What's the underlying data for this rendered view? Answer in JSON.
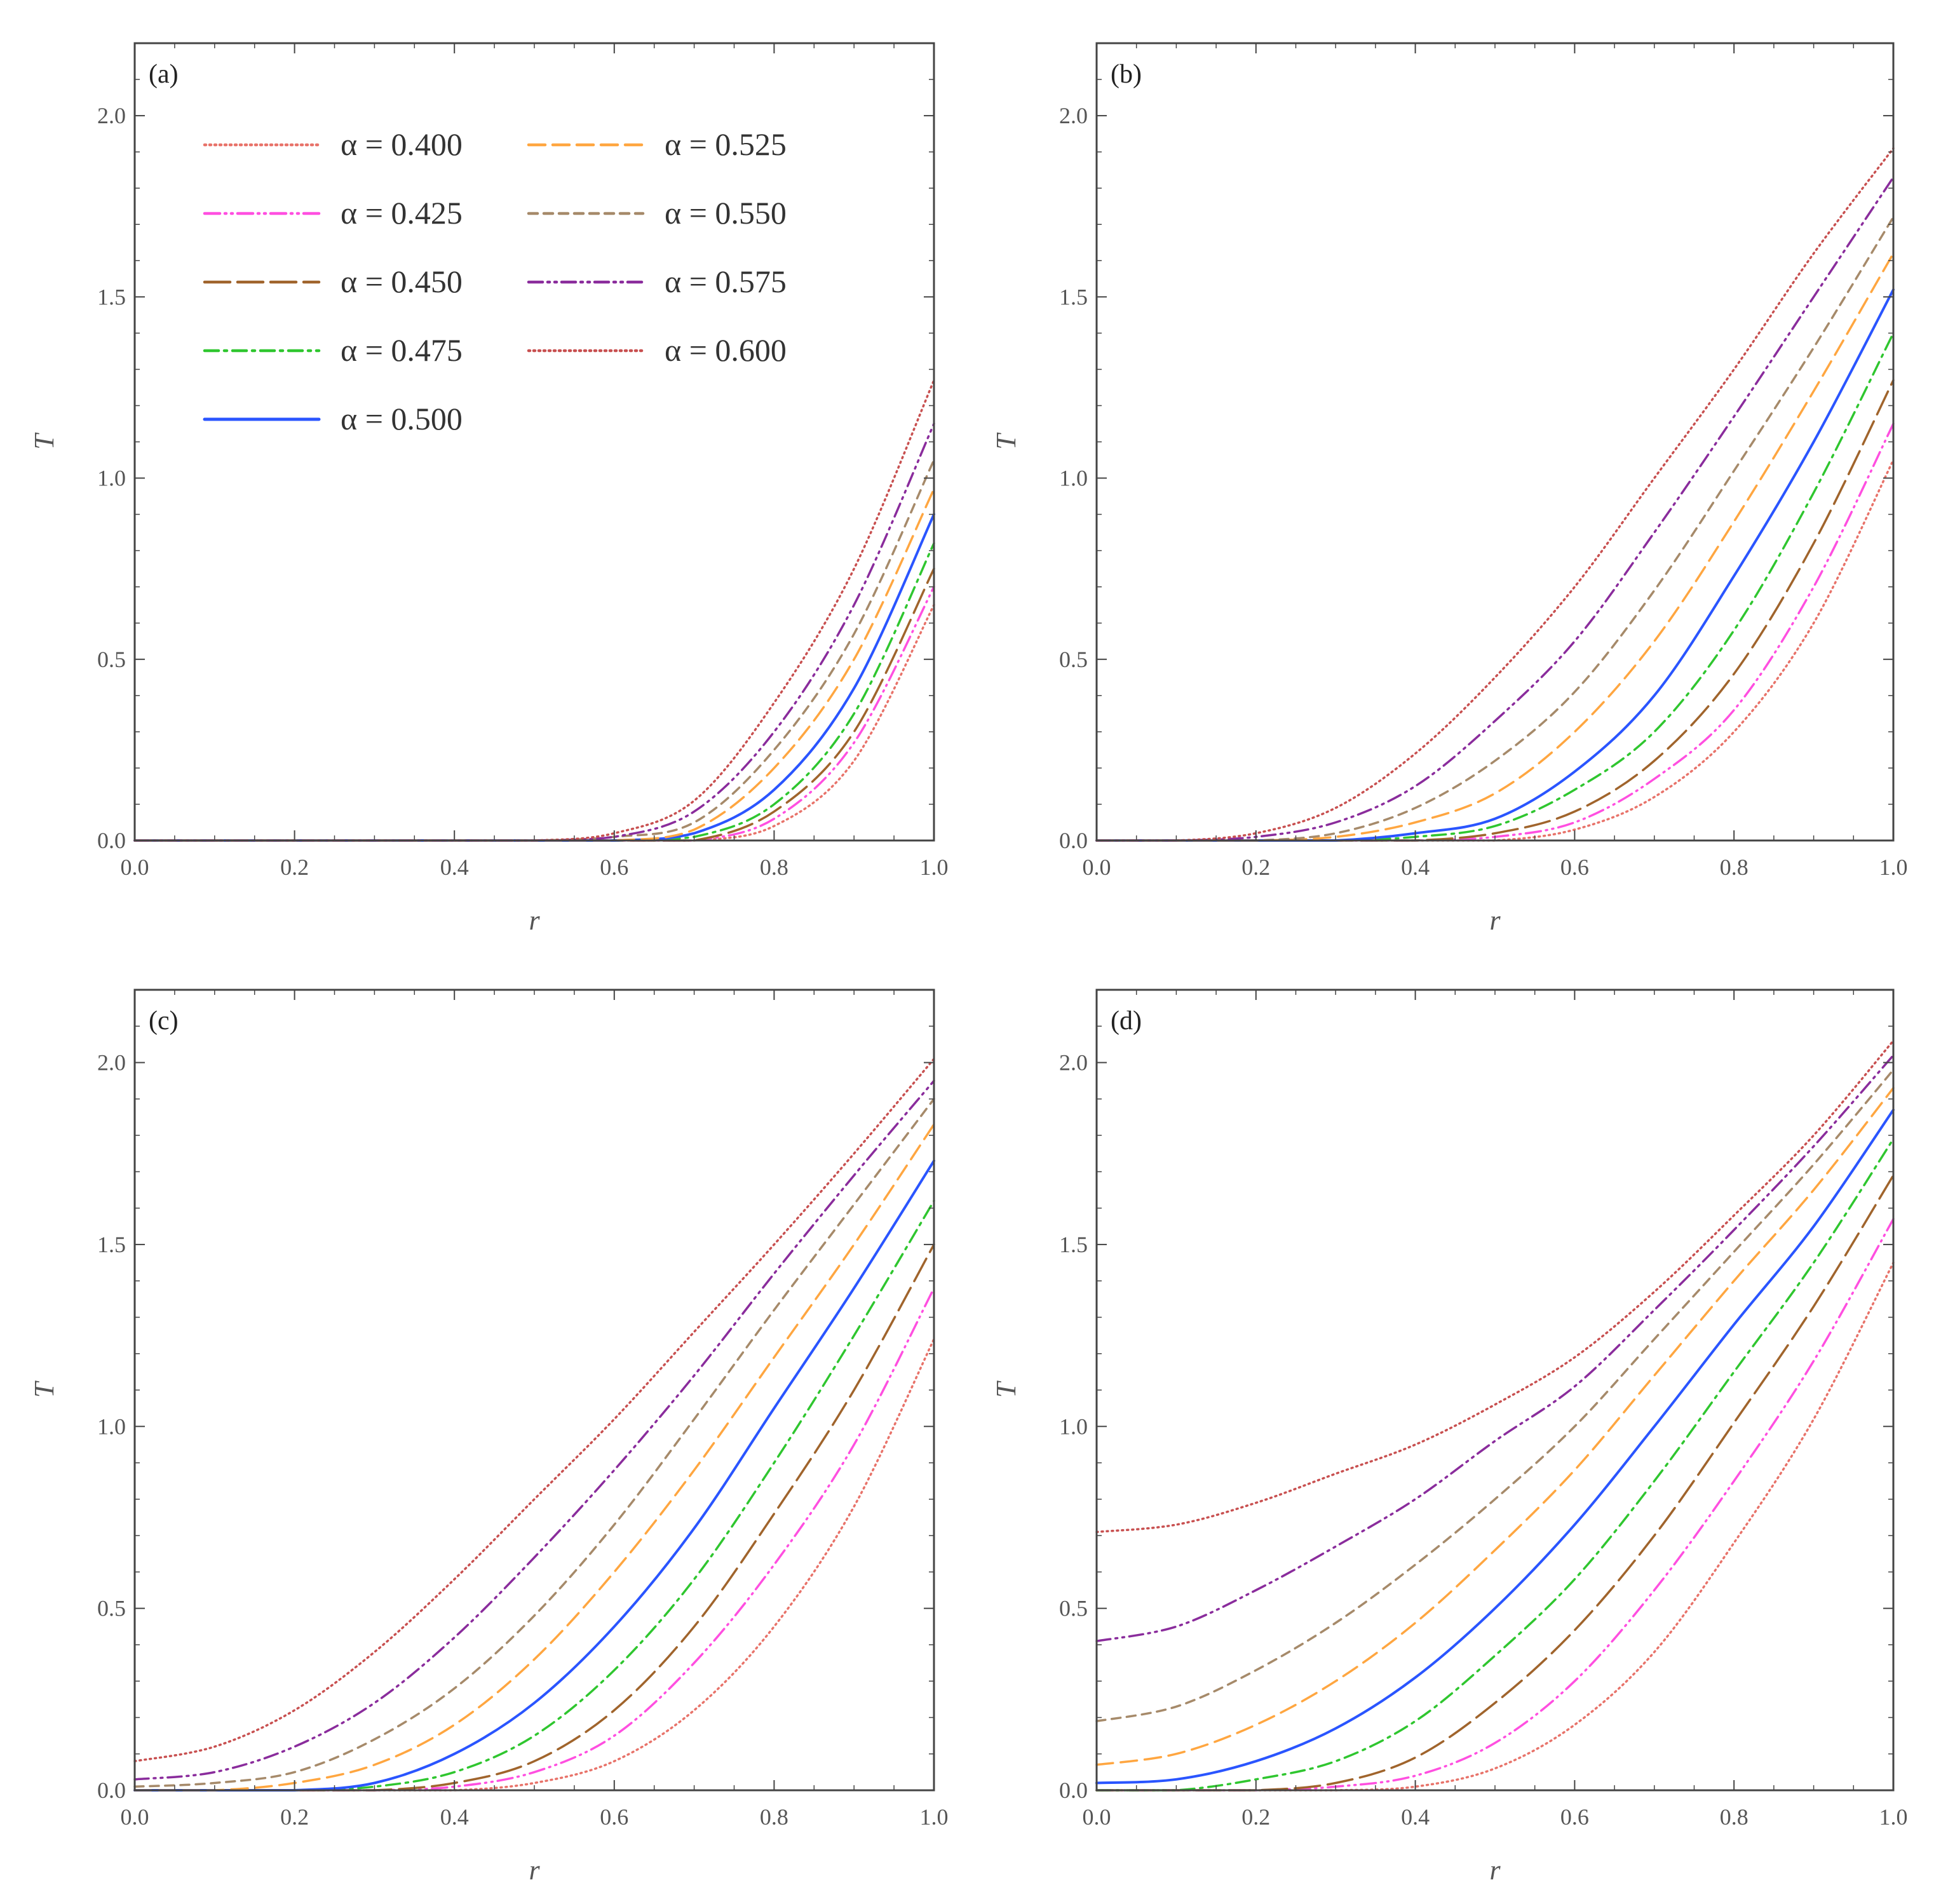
{
  "chart_data": [
    {
      "type": "line",
      "panel_label": "(a)",
      "xlabel": "r",
      "ylabel": "T",
      "xlim": [
        0.0,
        1.0
      ],
      "ylim": [
        0.0,
        2.2
      ],
      "x_ticks": [
        "0.0",
        "0.2",
        "0.4",
        "0.6",
        "0.8",
        "1.0"
      ],
      "y_ticks": [
        "0.0",
        "0.5",
        "1.0",
        "1.5",
        "2.0"
      ],
      "x": [
        0.0,
        0.1,
        0.2,
        0.3,
        0.4,
        0.5,
        0.6,
        0.7,
        0.8,
        0.9,
        1.0
      ],
      "series": [
        {
          "name": "α = 0.400",
          "values": [
            0,
            0,
            0,
            0,
            0,
            0,
            0,
            0,
            0.04,
            0.22,
            0.65
          ]
        },
        {
          "name": "α = 0.425",
          "values": [
            0,
            0,
            0,
            0,
            0,
            0,
            0,
            0,
            0.06,
            0.27,
            0.7
          ]
        },
        {
          "name": "α = 0.450",
          "values": [
            0,
            0,
            0,
            0,
            0,
            0,
            0,
            0,
            0.08,
            0.3,
            0.75
          ]
        },
        {
          "name": "α = 0.475",
          "values": [
            0,
            0,
            0,
            0,
            0,
            0,
            0,
            0.01,
            0.1,
            0.35,
            0.82
          ]
        },
        {
          "name": "α = 0.500",
          "values": [
            0,
            0,
            0,
            0,
            0,
            0,
            0,
            0.02,
            0.14,
            0.42,
            0.9
          ]
        },
        {
          "name": "α = 0.525",
          "values": [
            0,
            0,
            0,
            0,
            0,
            0,
            0,
            0.03,
            0.2,
            0.5,
            0.97
          ]
        },
        {
          "name": "α = 0.550",
          "values": [
            0,
            0,
            0,
            0,
            0,
            0,
            0.01,
            0.05,
            0.25,
            0.57,
            1.05
          ]
        },
        {
          "name": "α = 0.575",
          "values": [
            0,
            0,
            0,
            0,
            0,
            0,
            0.01,
            0.08,
            0.3,
            0.65,
            1.15
          ]
        },
        {
          "name": "α = 0.600",
          "values": [
            0,
            0,
            0,
            0,
            0,
            0,
            0.02,
            0.11,
            0.38,
            0.75,
            1.27
          ]
        }
      ],
      "legend": {
        "placement": "top-left",
        "columns": 2
      }
    },
    {
      "type": "line",
      "panel_label": "(b)",
      "xlabel": "r",
      "ylabel": "T",
      "xlim": [
        0.0,
        1.0
      ],
      "ylim": [
        0.0,
        2.2
      ],
      "x_ticks": [
        "0.0",
        "0.2",
        "0.4",
        "0.6",
        "0.8",
        "1.0"
      ],
      "y_ticks": [
        "0.0",
        "0.5",
        "1.0",
        "1.5",
        "2.0"
      ],
      "x": [
        0.0,
        0.1,
        0.2,
        0.3,
        0.4,
        0.5,
        0.6,
        0.7,
        0.8,
        0.9,
        1.0
      ],
      "series": [
        {
          "name": "α = 0.400",
          "values": [
            0,
            0,
            0,
            0,
            0,
            0,
            0.03,
            0.12,
            0.3,
            0.6,
            1.05
          ]
        },
        {
          "name": "α = 0.425",
          "values": [
            0,
            0,
            0,
            0,
            0,
            0.01,
            0.05,
            0.17,
            0.36,
            0.7,
            1.15
          ]
        },
        {
          "name": "α = 0.450",
          "values": [
            0,
            0,
            0,
            0,
            0,
            0.02,
            0.08,
            0.22,
            0.46,
            0.82,
            1.27
          ]
        },
        {
          "name": "α = 0.475",
          "values": [
            0,
            0,
            0,
            0,
            0.01,
            0.04,
            0.14,
            0.3,
            0.58,
            0.96,
            1.4
          ]
        },
        {
          "name": "α = 0.500",
          "values": [
            0,
            0,
            0,
            0,
            0.02,
            0.06,
            0.19,
            0.4,
            0.73,
            1.1,
            1.52
          ]
        },
        {
          "name": "α = 0.525",
          "values": [
            0,
            0,
            0,
            0.01,
            0.05,
            0.13,
            0.3,
            0.55,
            0.88,
            1.24,
            1.62
          ]
        },
        {
          "name": "α = 0.550",
          "values": [
            0,
            0,
            0,
            0.02,
            0.09,
            0.22,
            0.41,
            0.69,
            1.02,
            1.36,
            1.72
          ]
        },
        {
          "name": "α = 0.575",
          "values": [
            0,
            0,
            0.01,
            0.05,
            0.15,
            0.33,
            0.55,
            0.85,
            1.17,
            1.5,
            1.83
          ]
        },
        {
          "name": "α = 0.600",
          "values": [
            0,
            0,
            0.02,
            0.09,
            0.24,
            0.45,
            0.7,
            1.0,
            1.3,
            1.62,
            1.91
          ]
        }
      ]
    },
    {
      "type": "line",
      "panel_label": "(c)",
      "xlabel": "r",
      "ylabel": "T",
      "xlim": [
        0.0,
        1.0
      ],
      "ylim": [
        0.0,
        2.2
      ],
      "x_ticks": [
        "0.0",
        "0.2",
        "0.4",
        "0.6",
        "0.8",
        "1.0"
      ],
      "y_ticks": [
        "0.0",
        "0.5",
        "1.0",
        "1.5",
        "2.0"
      ],
      "x": [
        0.0,
        0.1,
        0.2,
        0.3,
        0.4,
        0.5,
        0.6,
        0.7,
        0.8,
        0.9,
        1.0
      ],
      "series": [
        {
          "name": "α = 0.400",
          "values": [
            0,
            0,
            0,
            0,
            0,
            0.02,
            0.08,
            0.22,
            0.45,
            0.78,
            1.24
          ]
        },
        {
          "name": "α = 0.425",
          "values": [
            0,
            0,
            0,
            0,
            0.01,
            0.05,
            0.15,
            0.35,
            0.62,
            0.95,
            1.38
          ]
        },
        {
          "name": "α = 0.450",
          "values": [
            0,
            0,
            0,
            0,
            0.02,
            0.08,
            0.22,
            0.45,
            0.76,
            1.1,
            1.5
          ]
        },
        {
          "name": "α = 0.475",
          "values": [
            0,
            0,
            0,
            0.01,
            0.05,
            0.15,
            0.33,
            0.58,
            0.9,
            1.25,
            1.62
          ]
        },
        {
          "name": "α = 0.500",
          "values": [
            0,
            0,
            0,
            0.02,
            0.1,
            0.24,
            0.45,
            0.72,
            1.05,
            1.38,
            1.73
          ]
        },
        {
          "name": "α = 0.525",
          "values": [
            0,
            0,
            0.02,
            0.07,
            0.18,
            0.36,
            0.6,
            0.88,
            1.19,
            1.5,
            1.83
          ]
        },
        {
          "name": "α = 0.550",
          "values": [
            0.01,
            0.02,
            0.05,
            0.14,
            0.28,
            0.48,
            0.73,
            1.02,
            1.32,
            1.61,
            1.9
          ]
        },
        {
          "name": "α = 0.575",
          "values": [
            0.03,
            0.05,
            0.12,
            0.24,
            0.42,
            0.64,
            0.88,
            1.14,
            1.42,
            1.69,
            1.95
          ]
        },
        {
          "name": "α = 0.600",
          "values": [
            0.08,
            0.12,
            0.22,
            0.38,
            0.58,
            0.8,
            1.02,
            1.26,
            1.5,
            1.75,
            2.01
          ]
        }
      ]
    },
    {
      "type": "line",
      "panel_label": "(d)",
      "xlabel": "r",
      "ylabel": "T",
      "xlim": [
        0.0,
        1.0
      ],
      "ylim": [
        0.0,
        2.2
      ],
      "x_ticks": [
        "0.0",
        "0.2",
        "0.4",
        "0.6",
        "0.8",
        "1.0"
      ],
      "y_ticks": [
        "0.0",
        "0.5",
        "1.0",
        "1.5",
        "2.0"
      ],
      "x": [
        0.0,
        0.1,
        0.2,
        0.3,
        0.4,
        0.5,
        0.6,
        0.7,
        0.8,
        0.9,
        1.0
      ],
      "series": [
        {
          "name": "α = 0.400",
          "values": [
            0,
            0,
            0,
            0,
            0.01,
            0.06,
            0.18,
            0.38,
            0.68,
            1.02,
            1.45
          ]
        },
        {
          "name": "α = 0.425",
          "values": [
            0,
            0,
            0,
            0.01,
            0.04,
            0.13,
            0.3,
            0.55,
            0.85,
            1.18,
            1.57
          ]
        },
        {
          "name": "α = 0.450",
          "values": [
            0,
            0,
            0,
            0.02,
            0.09,
            0.24,
            0.44,
            0.7,
            1.01,
            1.33,
            1.69
          ]
        },
        {
          "name": "α = 0.475",
          "values": [
            0,
            0,
            0.03,
            0.08,
            0.19,
            0.37,
            0.58,
            0.85,
            1.15,
            1.45,
            1.79
          ]
        },
        {
          "name": "α = 0.500",
          "values": [
            0.02,
            0.03,
            0.08,
            0.17,
            0.31,
            0.5,
            0.73,
            1.0,
            1.28,
            1.55,
            1.87
          ]
        },
        {
          "name": "α = 0.525",
          "values": [
            0.07,
            0.1,
            0.18,
            0.3,
            0.46,
            0.66,
            0.88,
            1.14,
            1.4,
            1.65,
            1.93
          ]
        },
        {
          "name": "α = 0.550",
          "values": [
            0.19,
            0.23,
            0.33,
            0.46,
            0.62,
            0.8,
            1.0,
            1.24,
            1.48,
            1.72,
            1.98
          ]
        },
        {
          "name": "α = 0.575",
          "values": [
            0.41,
            0.45,
            0.55,
            0.67,
            0.8,
            0.96,
            1.11,
            1.32,
            1.54,
            1.77,
            2.02
          ]
        },
        {
          "name": "α = 0.600",
          "values": [
            0.71,
            0.73,
            0.79,
            0.87,
            0.95,
            1.06,
            1.19,
            1.37,
            1.58,
            1.8,
            2.06
          ]
        }
      ]
    }
  ],
  "styles": [
    {
      "color": "#e8736a",
      "dash": "2 6"
    },
    {
      "color": "#ff4fe0",
      "dash": "24 8 2 8 2 8"
    },
    {
      "color": "#a0642c",
      "dash": "40 12"
    },
    {
      "color": "#2fc62f",
      "dash": "22 9 4 9"
    },
    {
      "color": "#2a55ff",
      "dash": ""
    },
    {
      "color": "#ffa640",
      "dash": "26 12"
    },
    {
      "color": "#a68a6a",
      "dash": "14 10"
    },
    {
      "color": "#8a2c9c",
      "dash": "22 8 3 8 3 8"
    },
    {
      "color": "#c85050",
      "dash": "2 6"
    }
  ]
}
